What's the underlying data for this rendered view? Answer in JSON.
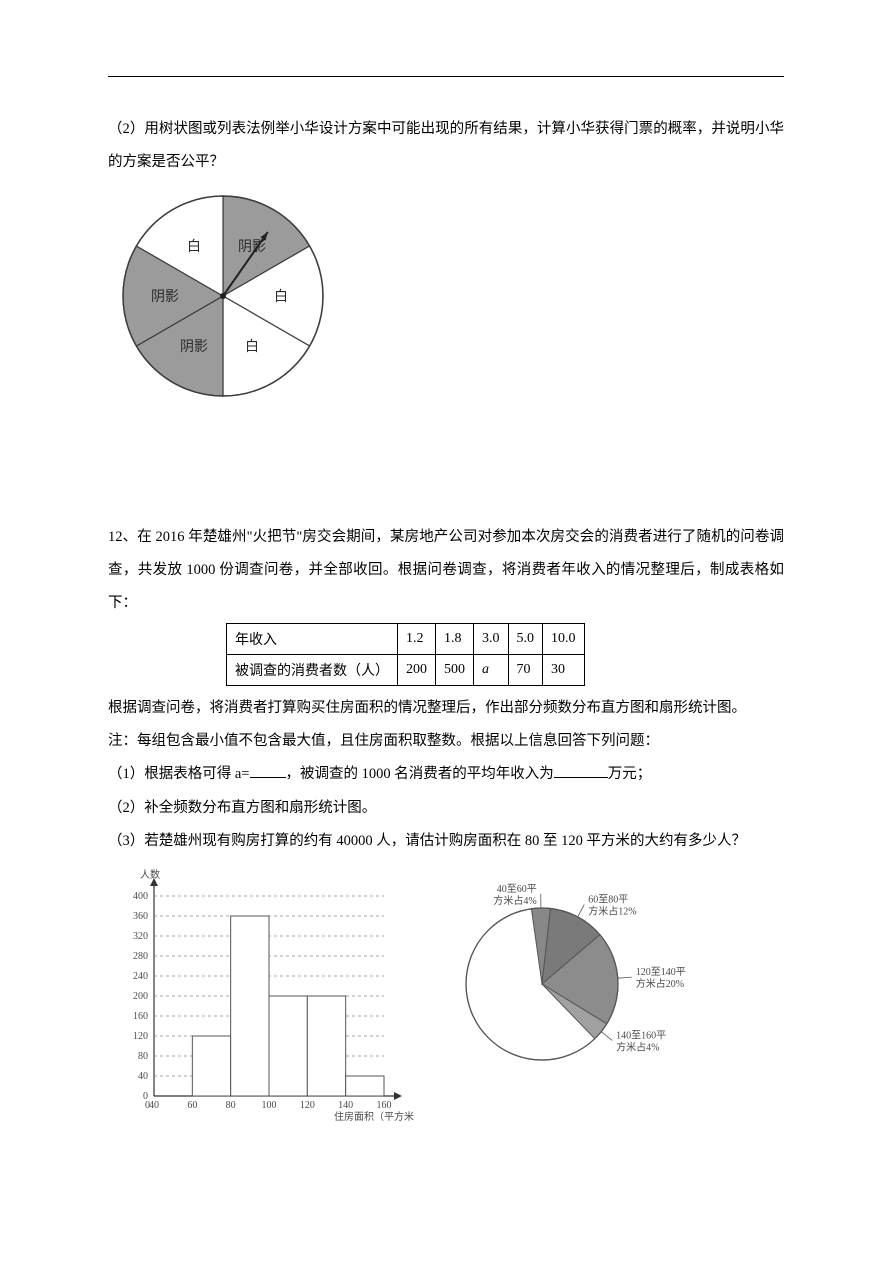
{
  "q11_part2": {
    "text": "（2）用树状图或列表法例举小华设计方案中可能出现的所有结果，计算小华获得门票的概率，并说明小华的方案是否公平？"
  },
  "spinner_chart": {
    "type": "pie",
    "sectors": [
      {
        "label": "阴影",
        "angle": 60,
        "fill": "#9b9b9b"
      },
      {
        "label": "白",
        "angle": 60,
        "fill": "#ffffff"
      },
      {
        "label": "白",
        "angle": 60,
        "fill": "#ffffff"
      },
      {
        "label": "阴影",
        "angle": 60,
        "fill": "#9b9b9b"
      },
      {
        "label": "阴影",
        "angle": 60,
        "fill": "#9b9b9b"
      },
      {
        "label": "白",
        "angle": 60,
        "fill": "#ffffff"
      }
    ],
    "stroke": "#3d3d3d",
    "label_font": 14,
    "radius": 100
  },
  "q12": {
    "intro": "12、在 2016 年楚雄州\"火把节\"房交会期间，某房地产公司对参加本次房交会的消费者进行了随机的问卷调查，共发放 1000 份调查问卷，并全部收回。根据问卷调查，将消费者年收入的情况整理后，制成表格如下：",
    "table": {
      "col_label_income": "年收入",
      "col_label_count": "被调查的消费者数（人）",
      "income": [
        "1.2",
        "1.8",
        "3.0",
        "5.0",
        "10.0"
      ],
      "count": [
        "200",
        "500",
        "a",
        "70",
        "30"
      ]
    },
    "after_table": "根据调查问卷，将消费者打算购买住房面积的情况整理后，作出部分频数分布直方图和扇形统计图。",
    "note": "注：每组包含最小值不包含最大值，且住房面积取整数。根据以上信息回答下列问题：",
    "sub1_a": "（1）根据表格可得 a=",
    "sub1_b": "，被调查的 1000 名消费者的平均年收入为",
    "sub1_c": "万元；",
    "sub2": "（2）补全频数分布直方图和扇形统计图。",
    "sub3": "（3）若楚雄州现有购房打算的约有 40000 人，请估计购房面积在 80 至 120 平方米的大约有多少人？"
  },
  "histogram": {
    "type": "histogram",
    "ylabel": "人数",
    "xlabel": "住房面积（平方米）",
    "ylim": [
      0,
      400
    ],
    "ytick_step": 40,
    "y_ticks": [
      0,
      40,
      80,
      120,
      160,
      200,
      240,
      280,
      320,
      360,
      400
    ],
    "x_edges": [
      40,
      60,
      80,
      100,
      120,
      140,
      160
    ],
    "bars": [
      {
        "from": 60,
        "to": 80,
        "value": 120
      },
      {
        "from": 80,
        "to": 100,
        "value": 360
      },
      {
        "from": 100,
        "to": 120,
        "value": 200
      },
      {
        "from": 120,
        "to": 140,
        "value": 200
      },
      {
        "from": 140,
        "to": 160,
        "value": 40
      }
    ],
    "bar_fill": "#ffffff",
    "bar_stroke": "#555555",
    "grid_dash": "3,3",
    "grid_color": "#888888",
    "axis_color": "#333333",
    "label_color": "#555555",
    "font_size": 10
  },
  "pie_stats": {
    "type": "pie",
    "slices": [
      {
        "label": "40至60平方米占4%",
        "pct": 4,
        "fill": "#888888"
      },
      {
        "label": "60至80平方米占12%",
        "pct": 12,
        "fill": "#7a7a7a"
      },
      {
        "label": "120至140平方米占20%",
        "pct": 20,
        "fill": "#8c8c8c"
      },
      {
        "label": "140至160平方米占4%",
        "pct": 4,
        "fill": "#a0a0a0"
      }
    ],
    "unknown_fill": "#ffffff",
    "stroke": "#555555",
    "radius": 76,
    "label_font": 10
  }
}
